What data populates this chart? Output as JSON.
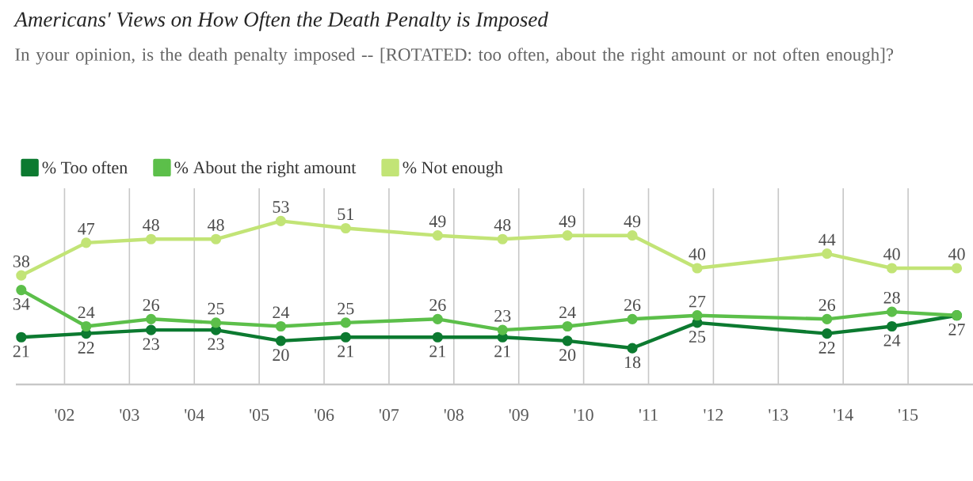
{
  "chart_data": {
    "type": "line",
    "title": "Americans' Views on How Often the Death Penalty is Imposed",
    "subtitle": "In your opinion, is the death penalty imposed -- [ROTATED: too often, about the right amount or not often enough]?",
    "x": [
      "2001-05",
      "2002-05",
      "2003-05",
      "2004-05",
      "2005-05",
      "2006-05",
      "2007-10",
      "2008-10",
      "2009-10",
      "2010-10",
      "2011-10",
      "2013-10",
      "2014-10",
      "2015-10"
    ],
    "series": [
      {
        "name": "% Too often",
        "color": "#0c7a30",
        "values": [
          21,
          22,
          23,
          23,
          20,
          21,
          21,
          21,
          20,
          18,
          25,
          22,
          24,
          27
        ]
      },
      {
        "name": "% About the right amount",
        "color": "#5cbf4a",
        "values": [
          34,
          24,
          26,
          25,
          24,
          25,
          26,
          23,
          24,
          26,
          27,
          26,
          28,
          27
        ],
        "value_labels": [
          "34",
          "24",
          "26",
          "25",
          "24",
          "25",
          "26",
          "23",
          "24",
          "26",
          "27",
          "26",
          "28",
          null
        ]
      },
      {
        "name": "% Not enough",
        "color": "#c2e476",
        "values": [
          38,
          47,
          48,
          48,
          53,
          51,
          49,
          48,
          49,
          49,
          40,
          44,
          40,
          40
        ]
      }
    ],
    "xlim": [
      "2001-04",
      "2016-01"
    ],
    "xticks": [
      {
        "value": "2002",
        "label": "'02"
      },
      {
        "value": "2003",
        "label": "'03"
      },
      {
        "value": "2004",
        "label": "'04"
      },
      {
        "value": "2005",
        "label": "'05"
      },
      {
        "value": "2006",
        "label": "'06"
      },
      {
        "value": "2007",
        "label": "'07"
      },
      {
        "value": "2008",
        "label": "'08"
      },
      {
        "value": "2009",
        "label": "'09"
      },
      {
        "value": "2010",
        "label": "'10"
      },
      {
        "value": "2011",
        "label": "'11"
      },
      {
        "value": "2012",
        "label": "'12"
      },
      {
        "value": "2013",
        "label": "'13"
      },
      {
        "value": "2014",
        "label": "'14"
      },
      {
        "value": "2015",
        "label": "'15"
      }
    ],
    "ylim": [
      8,
      62
    ],
    "data_labels": true,
    "grid": "x",
    "legend": "top left",
    "marker": "circle",
    "line_style": "solid"
  }
}
